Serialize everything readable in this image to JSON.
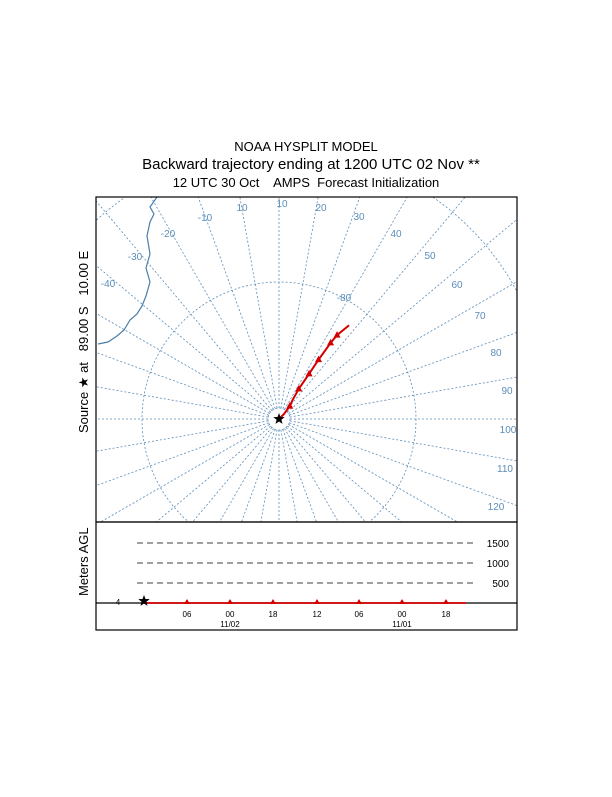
{
  "title": {
    "line1": "NOAA HYSPLIT MODEL",
    "line2": "Backward trajectory ending at 1200 UTC 02 Nov **",
    "line3": "12 UTC 30 Oct    AMPS  Forecast Initialization"
  },
  "source_label": "Source ★ at   89.00 S   10.00 E",
  "meters_label": "Meters AGL",
  "colors": {
    "trajectory": "#d40000",
    "grid": "#5b8db8",
    "frame": "#000000"
  },
  "chart_data": [
    {
      "type": "line",
      "name": "trajectory-map",
      "projection": "south-polar-stereographic",
      "source": {
        "lat": -89.0,
        "lon": 10.0
      },
      "meridian_labels": [
        "-10",
        "10",
        "10",
        "20",
        "30",
        "40",
        "50",
        "60",
        "70",
        "80",
        "90",
        "100",
        "110",
        "120",
        "-20",
        "-30",
        "-40"
      ],
      "latitude_circle_labels": [
        "-80"
      ],
      "trajectory_points_relative": [
        [
          0.0,
          0.0
        ],
        [
          0.12,
          -0.12
        ],
        [
          0.25,
          -0.3
        ],
        [
          0.32,
          -0.45
        ],
        [
          0.46,
          -0.7
        ],
        [
          0.7,
          -1.05
        ],
        [
          0.92,
          -1.38
        ],
        [
          1.2,
          -1.77
        ],
        [
          1.35,
          -1.95
        ],
        [
          1.63,
          -2.18
        ]
      ]
    },
    {
      "type": "line",
      "name": "height-profile",
      "ylabel": "Meters AGL",
      "y_ticks": [
        "1500",
        "1000",
        "500"
      ],
      "y_start_label": "4",
      "x_tick_labels": [
        "06",
        "00",
        "18",
        "12",
        "06",
        "00",
        "18"
      ],
      "x_date_labels": [
        "11/02",
        "11/01"
      ],
      "heights": [
        4,
        4,
        4,
        4,
        4,
        4,
        4,
        4,
        4
      ]
    }
  ]
}
